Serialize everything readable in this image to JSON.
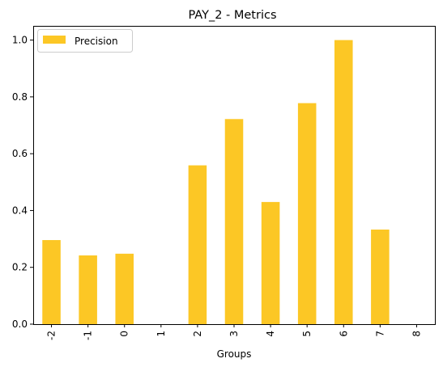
{
  "chart_data": {
    "type": "bar",
    "title": "PAY_2 - Metrics",
    "xlabel": "Groups",
    "ylabel": "",
    "categories": [
      "-2",
      "-1",
      "0",
      "1",
      "2",
      "3",
      "4",
      "5",
      "6",
      "7",
      "8"
    ],
    "series": [
      {
        "name": "Precision",
        "color": "#fcc725",
        "values": [
          0.296,
          0.242,
          0.248,
          0.0,
          0.559,
          0.722,
          0.43,
          0.778,
          1.0,
          0.333,
          0.0
        ]
      }
    ],
    "ylim": [
      0,
      1.05
    ],
    "yticks": [
      "0.0",
      "0.2",
      "0.4",
      "0.6",
      "0.8",
      "1.0"
    ],
    "grid": false,
    "legend_position": "top-left"
  }
}
